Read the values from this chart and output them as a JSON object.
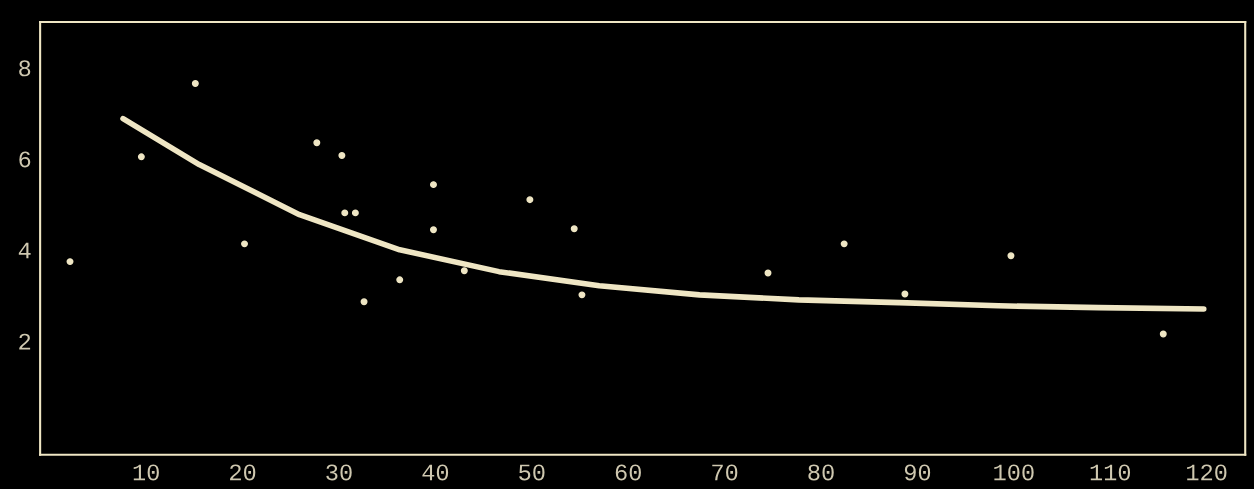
{
  "chart_data": {
    "type": "scatter",
    "xlim": [
      -1,
      124
    ],
    "ylim": [
      -0.5,
      9
    ],
    "xticks": [
      10,
      20,
      30,
      40,
      50,
      60,
      70,
      80,
      90,
      100,
      110,
      120
    ],
    "yticks": [
      2,
      4,
      6,
      8
    ],
    "grid": false,
    "series": [
      {
        "marker": "circle",
        "color": "#efe6c4",
        "x": [
          2.1,
          9.5,
          15.1,
          20.2,
          27.7,
          30.3,
          30.6,
          31.7,
          32.6,
          36.3,
          39.8,
          39.8,
          43.0,
          49.8,
          54.4,
          55.2,
          74.5,
          82.4,
          88.7,
          99.7,
          115.5
        ],
        "values": [
          3.74,
          6.04,
          7.65,
          4.13,
          6.35,
          6.07,
          4.81,
          4.81,
          2.86,
          3.34,
          5.43,
          4.44,
          3.54,
          5.1,
          4.46,
          3.01,
          3.49,
          4.13,
          3.03,
          3.87,
          2.15
        ]
      },
      {
        "type": "line",
        "color": "#efe6c4",
        "x": [
          7.6,
          15.5,
          25.9,
          36.3,
          46.6,
          57,
          67.4,
          77.7,
          88.1,
          98.4,
          108.8,
          119.7
        ],
        "values": [
          6.88,
          5.87,
          4.77,
          4.0,
          3.52,
          3.21,
          3.01,
          2.9,
          2.84,
          2.77,
          2.73,
          2.7
        ]
      }
    ]
  }
}
